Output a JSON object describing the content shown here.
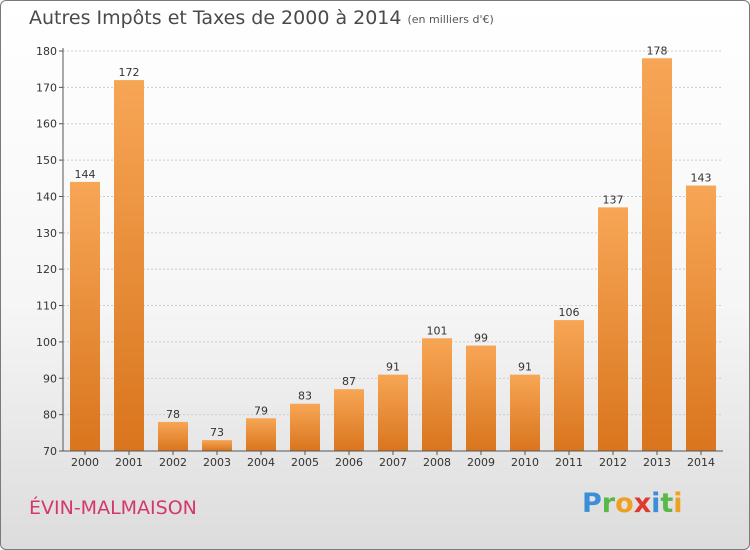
{
  "title": "Autres Impôts et Taxes de 2000 à 2014",
  "subtitle": "(en milliers d'€)",
  "commune": "ÉVIN-MALMAISON",
  "logo": {
    "letters": [
      "P",
      "r",
      "o",
      "x",
      "i",
      "t",
      "i"
    ],
    "colors": [
      "#3a8fd8",
      "#58b84a",
      "#f0a020",
      "#e03a30",
      "#3a8fd8",
      "#58b84a",
      "#f0a020"
    ]
  },
  "colors": {
    "bar_light": "#f7a656",
    "bar_dark": "#d9751d",
    "grid": "#cccccc",
    "axis": "#555555",
    "text": "#333333"
  },
  "chart_data": {
    "type": "bar",
    "categories": [
      "2000",
      "2001",
      "2002",
      "2003",
      "2004",
      "2005",
      "2006",
      "2007",
      "2008",
      "2009",
      "2010",
      "2011",
      "2012",
      "2013",
      "2014"
    ],
    "values": [
      144,
      172,
      78,
      73,
      79,
      83,
      87,
      91,
      101,
      99,
      91,
      106,
      137,
      178,
      143
    ],
    "value_labels": [
      "144",
      "172",
      "78",
      "73",
      "79",
      "83",
      "87",
      "91",
      "101",
      "99",
      "91",
      "106",
      "137",
      "178",
      "143"
    ],
    "title": "Autres Impôts et Taxes de 2000 à 2014",
    "xlabel": "",
    "ylabel": "",
    "ylim": [
      70,
      180
    ],
    "yticks": [
      "70",
      "80",
      "90",
      "100",
      "110",
      "120",
      "130",
      "140",
      "150",
      "160",
      "170",
      "180"
    ],
    "grid": true
  }
}
